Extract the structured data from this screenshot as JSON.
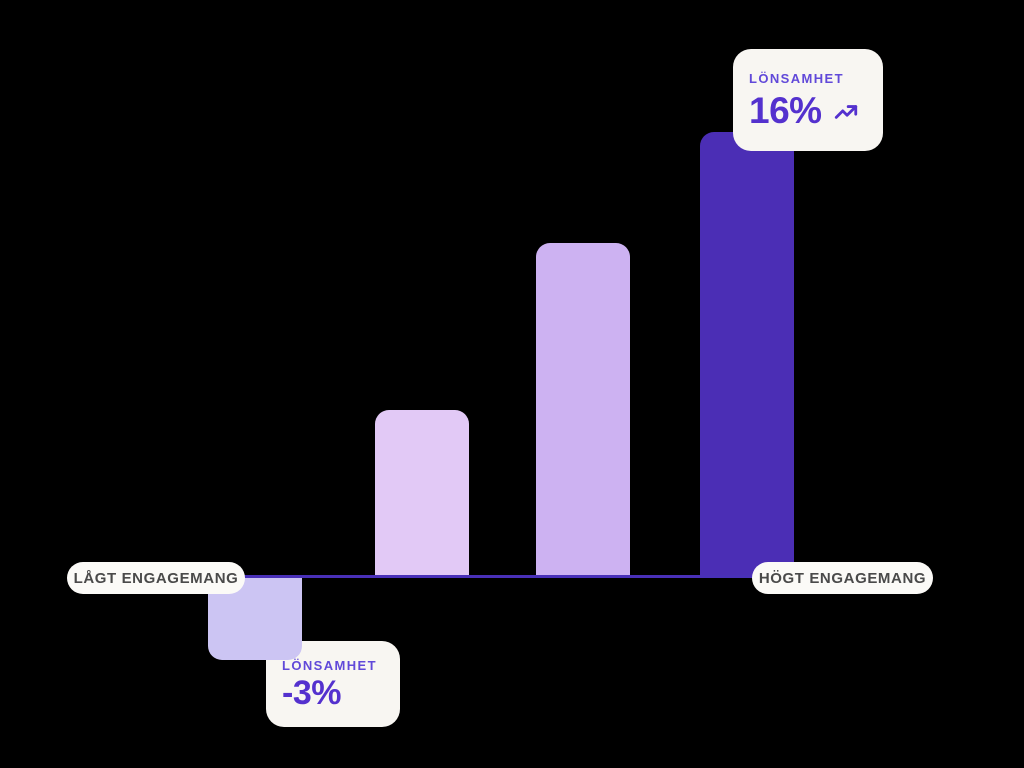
{
  "chart_data": {
    "type": "bar",
    "title": "",
    "categories": [
      "Lågt engagemang",
      "",
      "",
      "Högt engagemang"
    ],
    "values": [
      -3,
      6,
      12,
      16
    ],
    "unit": "%",
    "labeled_points": [
      {
        "bar_index": 0,
        "label": "LÖNSAMHET",
        "value": "-3%"
      },
      {
        "bar_index": 3,
        "label": "LÖNSAMHET",
        "value": "16%"
      }
    ],
    "bar_colors": [
      "#CCC5F3",
      "#E2C9F6",
      "#CDB2F2",
      "#4B2EB5"
    ],
    "axis_line_color": "#4930B8",
    "ylim": [
      -5,
      18
    ],
    "grid": false,
    "legend": false
  },
  "axis_labels": {
    "left": "LÅGT ENGAGEMANG",
    "right": "HÖGT ENGAGEMANG"
  },
  "callouts": {
    "high": {
      "label": "LÖNSAMHET",
      "value": "16%",
      "icon": "trending-up-icon"
    },
    "low": {
      "label": "LÖNSAMHET",
      "value": "-3%"
    }
  },
  "colors": {
    "background": "#000000",
    "card_background": "#F8F6F2",
    "pill_background": "#FBFAF7",
    "accent_purple": "#5431CE",
    "label_purple": "#6149D9",
    "pill_text": "#4A4A4A"
  }
}
